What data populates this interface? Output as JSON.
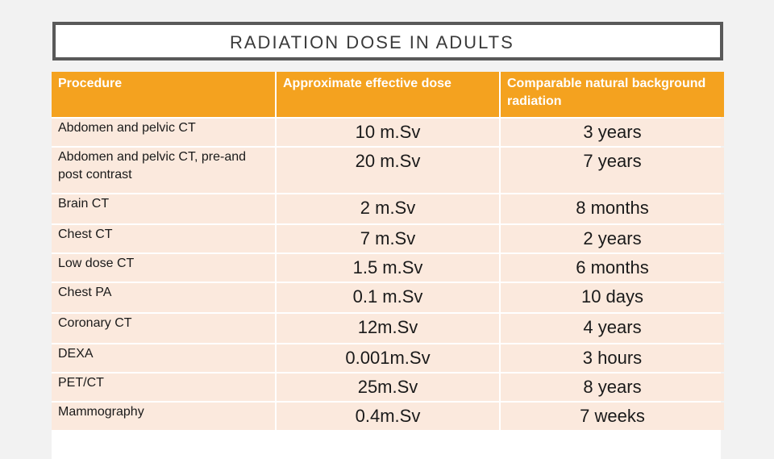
{
  "title": "RADIATION DOSE IN ADULTS",
  "colors": {
    "header_bg": "#f4a21f",
    "row_bg": "#fbe9dd",
    "border": "#595959"
  },
  "table": {
    "headers": [
      "Procedure",
      "Approximate effective dose",
      "Comparable natural background radiation"
    ],
    "rows": [
      {
        "procedure": "Abdomen and pelvic CT",
        "dose": "10 m.Sv",
        "background": "3 years"
      },
      {
        "procedure": "Abdomen and pelvic CT, pre-and post contrast",
        "dose": "20 m.Sv",
        "background": "7 years"
      },
      {
        "procedure": "Brain CT",
        "dose": "2 m.Sv",
        "background": "8 months"
      },
      {
        "procedure": "Chest CT",
        "dose": "7 m.Sv",
        "background": "2 years"
      },
      {
        "procedure": "Low dose CT",
        "dose": "1.5 m.Sv",
        "background": "6 months"
      },
      {
        "procedure": "Chest PA",
        "dose": "0.1 m.Sv",
        "background": "10 days"
      },
      {
        "procedure": "Coronary CT",
        "dose": "12m.Sv",
        "background": "4 years"
      },
      {
        "procedure": "DEXA",
        "dose": "0.001m.Sv",
        "background": "3 hours"
      },
      {
        "procedure": "PET/CT",
        "dose": "25m.Sv",
        "background": "8 years"
      },
      {
        "procedure": "Mammography",
        "dose": "0.4m.Sv",
        "background": "7 weeks"
      }
    ]
  }
}
